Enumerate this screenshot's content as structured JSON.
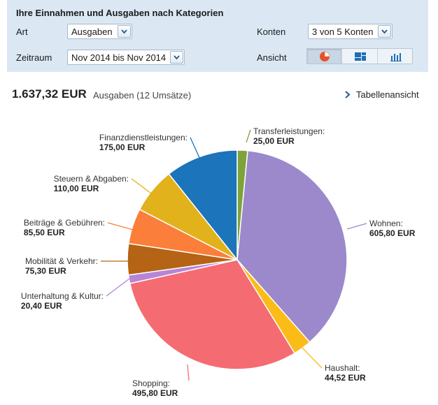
{
  "panel": {
    "title": "Ihre Einnahmen und Ausgaben nach Kategorien",
    "art_label": "Art",
    "art_value": "Ausgaben",
    "zeitraum_label": "Zeitraum",
    "zeitraum_value": "Nov 2014 bis Nov 2014",
    "konten_label": "Konten",
    "konten_value": "3 von 5 Konten",
    "ansicht_label": "Ansicht",
    "view_options": [
      "pie-chart-icon",
      "treemap-icon",
      "bar-chart-icon"
    ],
    "active_view": "pie-chart-icon"
  },
  "summary": {
    "amount": "1.637,32 EUR",
    "description": "Ausgaben (12 Umsätze)",
    "table_link": "Tabellenansicht"
  },
  "chart_data": {
    "type": "pie",
    "unit": "EUR",
    "slices": [
      {
        "name": "Transferleistungen:",
        "value": 25.0,
        "label": "25,00 EUR",
        "color": "#7ea33a"
      },
      {
        "name": "Wohnen:",
        "value": 605.8,
        "label": "605,80 EUR",
        "color": "#9b89cc"
      },
      {
        "name": "Haushalt:",
        "value": 44.52,
        "label": "44,52 EUR",
        "color": "#fbbc18"
      },
      {
        "name": "Shopping:",
        "value": 495.8,
        "label": "495,80 EUR",
        "color": "#f56b72"
      },
      {
        "name": "Unterhaltung & Kultur:",
        "value": 20.4,
        "label": "20,40 EUR",
        "color": "#b784d6"
      },
      {
        "name": "Mobilität & Verkehr:",
        "value": 75.3,
        "label": "75,30 EUR",
        "color": "#b56314"
      },
      {
        "name": "Beiträge & Gebühren:",
        "value": 85.5,
        "label": "85,50 EUR",
        "color": "#fb7e3a"
      },
      {
        "name": "Steuern & Abgaben:",
        "value": 110.0,
        "label": "110,00 EUR",
        "color": "#e1b21b"
      },
      {
        "name": "Finanzdienstleistungen:",
        "value": 175.0,
        "label": "175,00 EUR",
        "color": "#1c74bb"
      }
    ]
  }
}
